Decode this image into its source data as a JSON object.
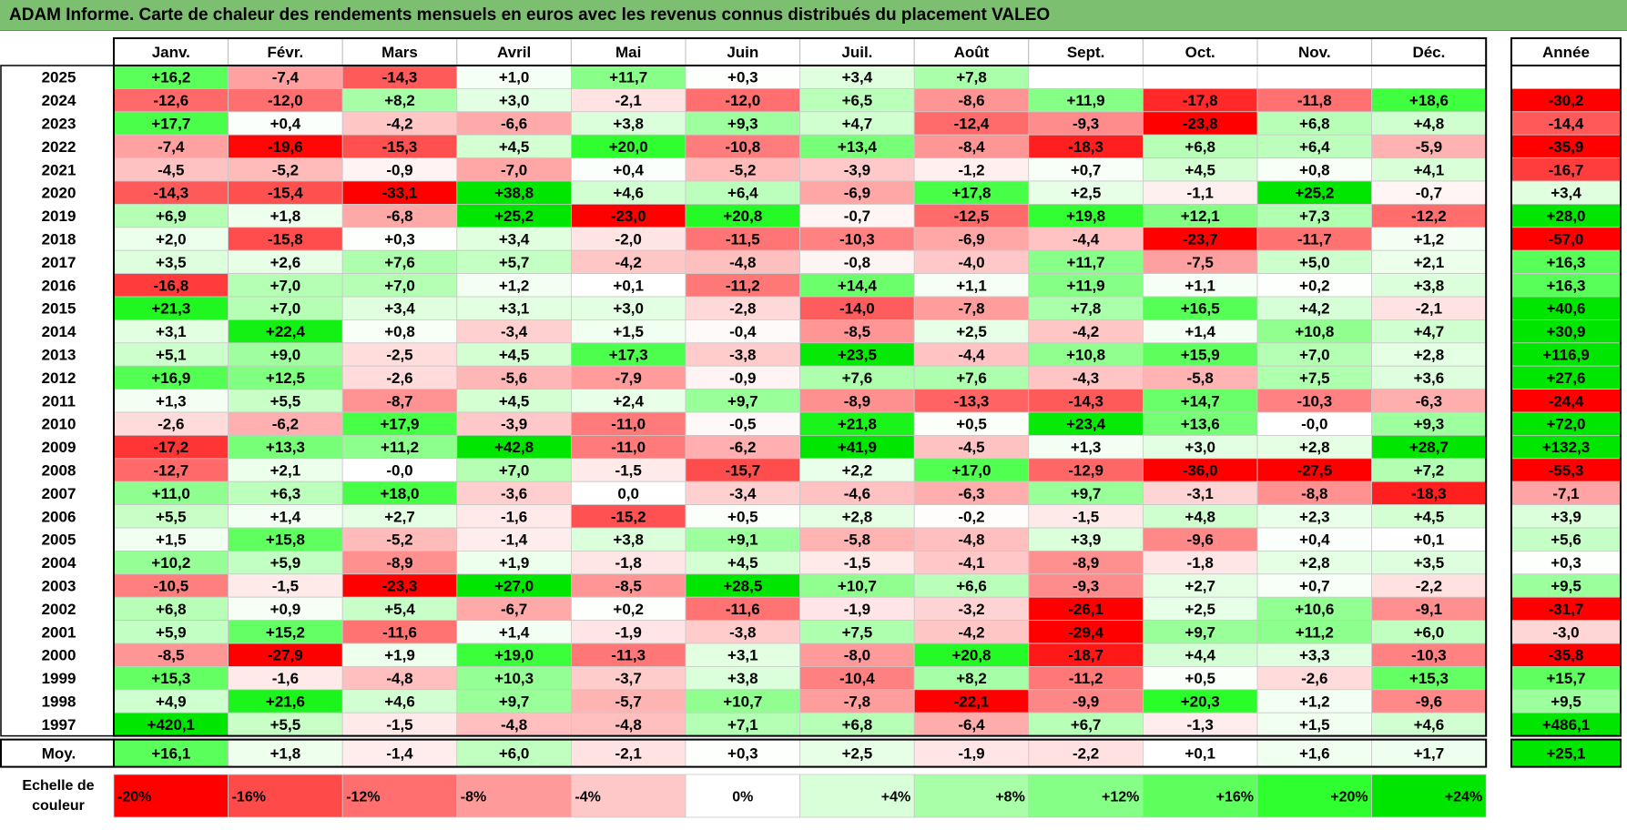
{
  "title": "ADAM Informe. Carte de chaleur des rendements mensuels en euros avec les revenus connus distribués du placement VALEO",
  "chart_data": {
    "type": "heatmap",
    "months": [
      "Janv.",
      "Févr.",
      "Mars",
      "Avril",
      "Mai",
      "Juin",
      "Juil.",
      "Août",
      "Sept.",
      "Oct.",
      "Nov.",
      "Déc."
    ],
    "year_header": "Année",
    "rows": [
      {
        "label": "2025",
        "values": [
          "+16,2",
          "-7,4",
          "-14,3",
          "+1,0",
          "+11,7",
          "+0,3",
          "+3,4",
          "+7,8",
          "",
          "",
          "",
          ""
        ],
        "year": ""
      },
      {
        "label": "2024",
        "values": [
          "-12,6",
          "-12,0",
          "+8,2",
          "+3,0",
          "-2,1",
          "-12,0",
          "+6,5",
          "-8,6",
          "+11,9",
          "-17,8",
          "-11,8",
          "+18,6"
        ],
        "year": "-30,2"
      },
      {
        "label": "2023",
        "values": [
          "+17,7",
          "+0,4",
          "-4,2",
          "-6,6",
          "+3,8",
          "+9,3",
          "+4,7",
          "-12,4",
          "-9,3",
          "-23,8",
          "+6,8",
          "+4,8"
        ],
        "year": "-14,4"
      },
      {
        "label": "2022",
        "values": [
          "-7,4",
          "-19,6",
          "-15,3",
          "+4,5",
          "+20,0",
          "-10,8",
          "+13,4",
          "-8,4",
          "-18,3",
          "+6,8",
          "+6,4",
          "-5,9"
        ],
        "year": "-35,9"
      },
      {
        "label": "2021",
        "values": [
          "-4,5",
          "-5,2",
          "-0,9",
          "-7,0",
          "+0,4",
          "-5,2",
          "-3,9",
          "-1,2",
          "+0,7",
          "+4,5",
          "+0,8",
          "+4,1"
        ],
        "year": "-16,7"
      },
      {
        "label": "2020",
        "values": [
          "-14,3",
          "-15,4",
          "-33,1",
          "+38,8",
          "+4,6",
          "+6,4",
          "-6,9",
          "+17,8",
          "+2,5",
          "-1,1",
          "+25,2",
          "-0,7"
        ],
        "year": "+3,4"
      },
      {
        "label": "2019",
        "values": [
          "+6,9",
          "+1,8",
          "-6,8",
          "+25,2",
          "-23,0",
          "+20,8",
          "-0,7",
          "-12,5",
          "+19,8",
          "+12,1",
          "+7,3",
          "-12,2"
        ],
        "year": "+28,0"
      },
      {
        "label": "2018",
        "values": [
          "+2,0",
          "-15,8",
          "+0,3",
          "+3,4",
          "-2,0",
          "-11,5",
          "-10,3",
          "-6,9",
          "-4,4",
          "-23,7",
          "-11,7",
          "+1,2"
        ],
        "year": "-57,0"
      },
      {
        "label": "2017",
        "values": [
          "+3,5",
          "+2,6",
          "+7,6",
          "+5,7",
          "-4,2",
          "-4,8",
          "-0,8",
          "-4,0",
          "+11,7",
          "-7,5",
          "+5,0",
          "+2,1"
        ],
        "year": "+16,3"
      },
      {
        "label": "2016",
        "values": [
          "-16,8",
          "+7,0",
          "+7,0",
          "+1,2",
          "+0,1",
          "-11,2",
          "+14,4",
          "+1,1",
          "+11,9",
          "+1,1",
          "+0,2",
          "+3,8"
        ],
        "year": "+16,3"
      },
      {
        "label": "2015",
        "values": [
          "+21,3",
          "+7,0",
          "+3,4",
          "+3,1",
          "+3,0",
          "-2,8",
          "-14,0",
          "-7,8",
          "+7,8",
          "+16,5",
          "+4,2",
          "-2,1"
        ],
        "year": "+40,6"
      },
      {
        "label": "2014",
        "values": [
          "+3,1",
          "+22,4",
          "+0,8",
          "-3,4",
          "+1,5",
          "-0,4",
          "-8,5",
          "+2,5",
          "-4,2",
          "+1,4",
          "+10,8",
          "+4,7"
        ],
        "year": "+30,9"
      },
      {
        "label": "2013",
        "values": [
          "+5,1",
          "+9,0",
          "-2,5",
          "+4,5",
          "+17,3",
          "-3,8",
          "+23,5",
          "-4,4",
          "+10,8",
          "+15,9",
          "+7,0",
          "+2,8"
        ],
        "year": "+116,9"
      },
      {
        "label": "2012",
        "values": [
          "+16,9",
          "+12,5",
          "-2,6",
          "-5,6",
          "-7,9",
          "-0,9",
          "+7,6",
          "+7,6",
          "-4,3",
          "-5,8",
          "+7,5",
          "+3,6"
        ],
        "year": "+27,6"
      },
      {
        "label": "2011",
        "values": [
          "+1,3",
          "+5,5",
          "-8,7",
          "+4,5",
          "+2,4",
          "+9,7",
          "-8,9",
          "-13,3",
          "-14,3",
          "+14,7",
          "-10,3",
          "-6,3"
        ],
        "year": "-24,4"
      },
      {
        "label": "2010",
        "values": [
          "-2,6",
          "-6,2",
          "+17,9",
          "-3,9",
          "-11,0",
          "-0,5",
          "+21,8",
          "+0,5",
          "+23,4",
          "+13,6",
          "-0,0",
          "+9,3"
        ],
        "year": "+72,0"
      },
      {
        "label": "2009",
        "values": [
          "-17,2",
          "+13,3",
          "+11,2",
          "+42,8",
          "-11,0",
          "-6,2",
          "+41,9",
          "-4,5",
          "+1,3",
          "+3,0",
          "+2,8",
          "+28,7"
        ],
        "year": "+132,3"
      },
      {
        "label": "2008",
        "values": [
          "-12,7",
          "+2,1",
          "-0,0",
          "+7,0",
          "-1,5",
          "-15,7",
          "+2,2",
          "+17,0",
          "-12,9",
          "-36,0",
          "-27,5",
          "+7,2"
        ],
        "year": "-55,3"
      },
      {
        "label": "2007",
        "values": [
          "+11,0",
          "+6,3",
          "+18,0",
          "-3,6",
          "0,0",
          "-3,4",
          "-4,6",
          "-6,3",
          "+9,7",
          "-3,1",
          "-8,8",
          "-18,3"
        ],
        "year": "-7,1"
      },
      {
        "label": "2006",
        "values": [
          "+5,5",
          "+1,4",
          "+2,7",
          "-1,6",
          "-15,2",
          "+0,5",
          "+2,8",
          "-0,2",
          "-1,5",
          "+4,8",
          "+2,3",
          "+4,5"
        ],
        "year": "+3,9"
      },
      {
        "label": "2005",
        "values": [
          "+1,5",
          "+15,8",
          "-5,2",
          "-1,4",
          "+3,8",
          "+9,1",
          "-5,8",
          "-4,8",
          "+3,9",
          "-9,6",
          "+0,4",
          "+0,1"
        ],
        "year": "+5,6"
      },
      {
        "label": "2004",
        "values": [
          "+10,2",
          "+5,9",
          "-8,9",
          "+1,9",
          "-1,8",
          "+4,5",
          "-1,5",
          "-4,1",
          "-8,9",
          "-1,8",
          "+2,8",
          "+3,5"
        ],
        "year": "+0,3"
      },
      {
        "label": "2003",
        "values": [
          "-10,5",
          "-1,5",
          "-23,3",
          "+27,0",
          "-8,5",
          "+28,5",
          "+10,7",
          "+6,6",
          "-9,3",
          "+2,7",
          "+0,7",
          "-2,2"
        ],
        "year": "+9,5"
      },
      {
        "label": "2002",
        "values": [
          "+6,8",
          "+0,9",
          "+5,4",
          "-6,7",
          "+0,2",
          "-11,6",
          "-1,9",
          "-3,2",
          "-26,1",
          "+2,5",
          "+10,6",
          "-9,1"
        ],
        "year": "-31,7"
      },
      {
        "label": "2001",
        "values": [
          "+5,9",
          "+15,2",
          "-11,6",
          "+1,4",
          "-1,9",
          "-3,8",
          "+7,5",
          "-4,2",
          "-29,4",
          "+9,7",
          "+11,2",
          "+6,0"
        ],
        "year": "-3,0"
      },
      {
        "label": "2000",
        "values": [
          "-8,5",
          "-27,9",
          "+1,9",
          "+19,0",
          "-11,3",
          "+3,1",
          "-8,0",
          "+20,8",
          "-18,7",
          "+4,4",
          "+3,3",
          "-10,3"
        ],
        "year": "-35,8"
      },
      {
        "label": "1999",
        "values": [
          "+15,3",
          "-1,6",
          "-4,8",
          "+10,3",
          "-3,7",
          "+3,8",
          "-10,4",
          "+8,2",
          "-11,2",
          "+0,5",
          "-2,6",
          "+15,3"
        ],
        "year": "+15,7"
      },
      {
        "label": "1998",
        "values": [
          "+4,9",
          "+21,6",
          "+4,6",
          "+9,7",
          "-5,7",
          "+10,7",
          "-7,8",
          "-22,1",
          "-9,9",
          "+20,3",
          "+1,2",
          "-9,6"
        ],
        "year": "+9,5"
      },
      {
        "label": "1997",
        "values": [
          "+420,1",
          "+5,5",
          "-1,5",
          "-4,8",
          "-4,8",
          "+7,1",
          "+6,8",
          "-6,4",
          "+6,7",
          "-1,3",
          "+1,5",
          "+4,6"
        ],
        "year": "+486,1"
      }
    ],
    "average": {
      "label": "Moy.",
      "values": [
        "+16,1",
        "+1,8",
        "-1,4",
        "+6,0",
        "-2,1",
        "+0,3",
        "+2,5",
        "-1,9",
        "-2,2",
        "+0,1",
        "+1,6",
        "+1,7"
      ],
      "year": "+25,1"
    },
    "scale": {
      "label_line1": "Echelle de",
      "label_line2": "couleur",
      "stops": [
        {
          "label": "-20%",
          "value": -20,
          "color": "#ff0000"
        },
        {
          "label": "-16%",
          "value": -16,
          "color": "#ff4a4a"
        },
        {
          "label": "-12%",
          "value": -12,
          "color": "#ff6f6f"
        },
        {
          "label": "-8%",
          "value": -8,
          "color": "#ff9a9a"
        },
        {
          "label": "-4%",
          "value": -4,
          "color": "#ffc8c8"
        },
        {
          "label": "0%",
          "value": 0,
          "color": "#ffffff"
        },
        {
          "label": "+4%",
          "value": 4,
          "color": "#d9ffd9"
        },
        {
          "label": "+8%",
          "value": 8,
          "color": "#a8ffa8"
        },
        {
          "label": "+12%",
          "value": 12,
          "color": "#85ff85"
        },
        {
          "label": "+16%",
          "value": 16,
          "color": "#5cff5c"
        },
        {
          "label": "+20%",
          "value": 20,
          "color": "#2fff2f"
        },
        {
          "label": "+24%",
          "value": 24,
          "color": "#00e600"
        }
      ]
    }
  }
}
